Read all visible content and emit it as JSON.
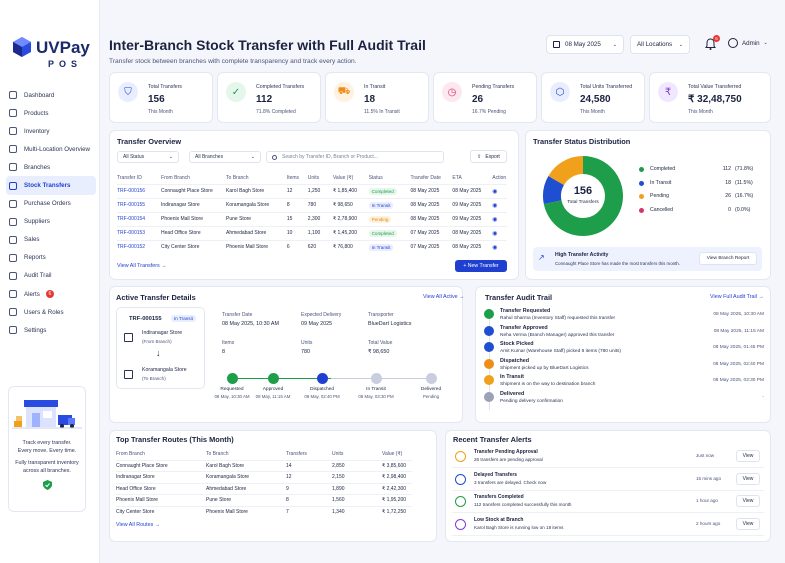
{
  "brand": {
    "name": "UVPay",
    "sub": "POS",
    "accent": "#1f3fd1"
  },
  "nav": [
    {
      "label": "Dashboard",
      "icon": "dashboard-icon"
    },
    {
      "label": "Products",
      "icon": "box-icon"
    },
    {
      "label": "Inventory",
      "icon": "inventory-icon"
    },
    {
      "label": "Multi-Location Overview",
      "icon": "location-icon"
    },
    {
      "label": "Branches",
      "icon": "branch-icon"
    },
    {
      "label": "Stock Transfers",
      "icon": "transfer-icon",
      "active": true
    },
    {
      "label": "Purchase Orders",
      "icon": "cart-icon"
    },
    {
      "label": "Suppliers",
      "icon": "supplier-icon"
    },
    {
      "label": "Sales",
      "icon": "sales-icon"
    },
    {
      "label": "Reports",
      "icon": "report-icon"
    },
    {
      "label": "Audit Trail",
      "icon": "audit-icon"
    },
    {
      "label": "Alerts",
      "icon": "bell-icon",
      "badge": "6"
    },
    {
      "label": "Users & Roles",
      "icon": "users-icon"
    },
    {
      "label": "Settings",
      "icon": "gear-icon"
    }
  ],
  "promo": {
    "line1": "Track every transfer.",
    "line2": "Every move. Every time.",
    "line3": "Fully transparent inventory",
    "line4": "across all branches."
  },
  "header": {
    "title": "Inter-Branch Stock Transfer with Full Audit Trail",
    "subtitle": "Transfer stock between branches with complete transparency and track every action.",
    "date": "08 May 2025",
    "location": "All Locations",
    "bell_count": "6",
    "user": "Admin"
  },
  "kpis": [
    {
      "label": "Total Transfers",
      "value": "156",
      "sub": "This Month",
      "color": "#1f3fd1",
      "bg": "#e9eeff"
    },
    {
      "label": "Completed Transfers",
      "value": "112",
      "sub": "71.8% Completed",
      "color": "#1e9e4a",
      "bg": "#e5f6eb"
    },
    {
      "label": "In Transit",
      "value": "18",
      "sub": "11.5% In Transit",
      "color": "#f08c1a",
      "bg": "#fff1e0"
    },
    {
      "label": "Pending Transfers",
      "value": "26",
      "sub": "16.7% Pending",
      "color": "#d8336b",
      "bg": "#fde8ef"
    },
    {
      "label": "Total Units Transferred",
      "value": "24,580",
      "sub": "This Month",
      "color": "#1f3fd1",
      "bg": "#e9eeff"
    },
    {
      "label": "Total Value Transferred",
      "value": "₹ 32,48,750",
      "sub": "This Month",
      "color": "#7b3fd1",
      "bg": "#f1e8ff"
    }
  ],
  "overview": {
    "title": "Transfer Overview",
    "status_filter": "All Status",
    "branch_filter": "All Branches",
    "search_placeholder": "Search by Transfer ID, Branch or Product...",
    "export": "Export",
    "columns": [
      "Transfer ID",
      "From Branch",
      "To Branch",
      "Items",
      "Units",
      "Value (₹)",
      "Status",
      "Transfer Date",
      "ETA",
      "Action"
    ],
    "rows": [
      [
        "TRF-000156",
        "Connaught Place Store",
        "Karol Bagh Store",
        "12",
        "1,250",
        "₹ 1,85,400",
        "Completed",
        "08 May 2025",
        "08 May 2025"
      ],
      [
        "TRF-000155",
        "Indiranagar Store",
        "Koramangala Store",
        "8",
        "780",
        "₹ 98,650",
        "In Transit",
        "08 May 2025",
        "09 May 2025"
      ],
      [
        "TRF-000154",
        "Phoenix Mall Store",
        "Pune Store",
        "15",
        "2,300",
        "₹ 2,78,900",
        "Pending",
        "08 May 2025",
        "09 May 2025"
      ],
      [
        "TRF-000153",
        "Head Office Store",
        "Ahmedabad Store",
        "10",
        "1,100",
        "₹ 1,45,200",
        "Completed",
        "07 May 2025",
        "08 May 2025"
      ],
      [
        "TRF-000152",
        "City Center Store",
        "Phoenix Mall Store",
        "6",
        "620",
        "₹ 76,800",
        "In Transit",
        "07 May 2025",
        "08 May 2025"
      ]
    ],
    "view_all": "View All Transfers",
    "new_transfer": "+ New Transfer"
  },
  "distribution": {
    "title": "Transfer Status Distribution",
    "total": "156",
    "total_label": "Total Transfers",
    "items": [
      {
        "name": "Completed",
        "value": 112,
        "pct": "(71.8%)",
        "color": "#1e9e4a"
      },
      {
        "name": "In Transit",
        "value": 18,
        "pct": "(11.5%)",
        "color": "#1f4fd1"
      },
      {
        "name": "Pending",
        "value": 26,
        "pct": "(16.7%)",
        "color": "#f0a01a"
      },
      {
        "name": "Cancelled",
        "value": 0,
        "pct": "(0.0%)",
        "color": "#d8336b"
      }
    ],
    "activity_title": "High Transfer Activity",
    "activity_desc": "Connaught Place Store has made the most transfers this month.",
    "report_btn": "View Branch Report"
  },
  "active": {
    "title": "Active Transfer Details",
    "view_all": "View All Active",
    "id": "TRF-000155",
    "status": "In Transit",
    "from": "Indiranagar Store",
    "from_role": "(From Branch)",
    "to": "Koramangala Store",
    "to_role": "(To Branch)",
    "transfer_date_label": "Transfer Date",
    "transfer_date": "08 May 2025, 10:30 AM",
    "expected_label": "Expected Delivery",
    "expected": "09 May 2025",
    "transporter_label": "Transporter",
    "transporter": "BlueDart Logistics",
    "items_label": "Items",
    "items": "8",
    "units_label": "Units",
    "units": "780",
    "total_label": "Total Value",
    "total": "₹ 98,650",
    "steps": [
      {
        "label": "Requested",
        "time": "08 May, 10:30 AM"
      },
      {
        "label": "Approved",
        "time": "08 May, 11:15 AM"
      },
      {
        "label": "Dispatched",
        "time": "08 May, 02:40 PM"
      },
      {
        "label": "In Transit",
        "time": "08 May, 03:30 PM"
      },
      {
        "label": "Delivered",
        "time": "Pending"
      }
    ]
  },
  "audit": {
    "title": "Transfer Audit Trail",
    "view_all": "View Full Audit Trail",
    "items": [
      {
        "title": "Transfer Requested",
        "desc": "Rahul Sharma (Inventory Staff) requested this transfer",
        "time": "08 May 2025, 10:30 AM",
        "color": "#1e9e4a"
      },
      {
        "title": "Transfer Approved",
        "desc": "Neha Verma (Branch Manager) approved this transfer",
        "time": "08 May 2025, 11:15 AM",
        "color": "#1f4fd1"
      },
      {
        "title": "Stock Picked",
        "desc": "Amit Kumar (Warehouse Staff) picked 8 items (780 units)",
        "time": "08 May 2025, 01:45 PM",
        "color": "#1f4fd1"
      },
      {
        "title": "Dispatched",
        "desc": "Shipment picked up by BlueDart Logistics",
        "time": "08 May 2025, 02:40 PM",
        "color": "#f08c1a"
      },
      {
        "title": "In Transit",
        "desc": "Shipment is on the way to destination branch",
        "time": "08 May 2025, 03:30 PM",
        "color": "#f0a01a"
      },
      {
        "title": "Delivered",
        "desc": "Pending delivery confirmation",
        "time": "-",
        "color": "#9aa1b8"
      }
    ]
  },
  "routes": {
    "title": "Top Transfer Routes (This Month)",
    "columns": [
      "From Branch",
      "To Branch",
      "Transfers",
      "Units",
      "Value (₹)"
    ],
    "rows": [
      [
        "Connaught Place Store",
        "Karol Bagh Store",
        "14",
        "2,850",
        "₹ 3,85,600"
      ],
      [
        "Indiranagar Store",
        "Koramangala Store",
        "12",
        "2,150",
        "₹ 2,98,400"
      ],
      [
        "Head Office Store",
        "Ahmedabad Store",
        "9",
        "1,890",
        "₹ 2,42,300"
      ],
      [
        "Phoenix Mall Store",
        "Pune Store",
        "8",
        "1,560",
        "₹ 1,95,200"
      ],
      [
        "City Center Store",
        "Phoenix Mall Store",
        "7",
        "1,340",
        "₹ 1,72,250"
      ]
    ],
    "view_all": "View All Routes"
  },
  "alerts": {
    "title": "Recent Transfer Alerts",
    "items": [
      {
        "title": "Transfer Pending Approval",
        "desc": "26 transfers are pending approval",
        "time": "Just now",
        "btn": "View",
        "color": "#f0a01a"
      },
      {
        "title": "Delayed Transfers",
        "desc": "3 transfers are delayed. Check now",
        "time": "15 mins ago",
        "btn": "View",
        "color": "#1f4fd1"
      },
      {
        "title": "Transfers Completed",
        "desc": "112 transfers completed successfully this month",
        "time": "1 hour ago",
        "btn": "View",
        "color": "#1e9e4a"
      },
      {
        "title": "Low Stock at Branch",
        "desc": "Karol Bagh Store is running low on 18 items",
        "time": "2 hours ago",
        "btn": "View",
        "color": "#7b3fd1"
      }
    ]
  }
}
